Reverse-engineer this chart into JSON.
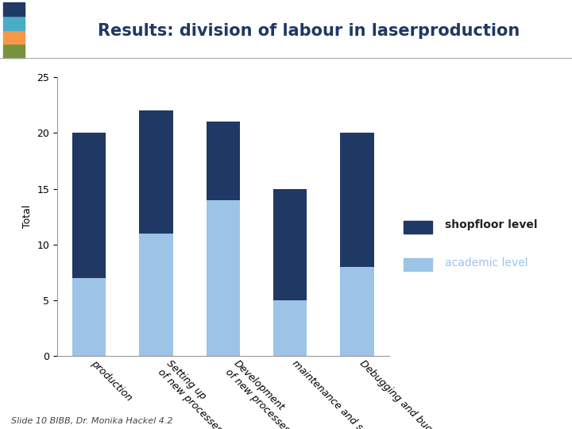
{
  "title": "Results: division of labour in laserproduction",
  "ylabel": "Total",
  "categories": [
    "production",
    "Setting up\nof new processes",
    "Development\nof new processes",
    "maintenance and servicing",
    "Debugging and bugfixing"
  ],
  "shopfloor_values": [
    13,
    11,
    7,
    10,
    12
  ],
  "academic_values": [
    7,
    11,
    14,
    5,
    8
  ],
  "shopfloor_color": "#1F3864",
  "academic_color": "#9DC3E6",
  "ylim": [
    0,
    25
  ],
  "yticks": [
    0,
    5,
    10,
    15,
    20,
    25
  ],
  "legend_shopfloor": "shopfloor level",
  "legend_academic": "academic level",
  "title_fontsize": 15,
  "ylabel_fontsize": 9,
  "tick_fontsize": 9,
  "legend_fontsize": 10,
  "footer_text": "Slide 10 BIBB, Dr. Monika Hackel 4.2",
  "background_color": "#FFFFFF",
  "bar_width": 0.5,
  "stripe_colors": [
    "#76923C",
    "#F79646",
    "#4BACC6",
    "#1F3864"
  ],
  "title_color": "#1F3864"
}
